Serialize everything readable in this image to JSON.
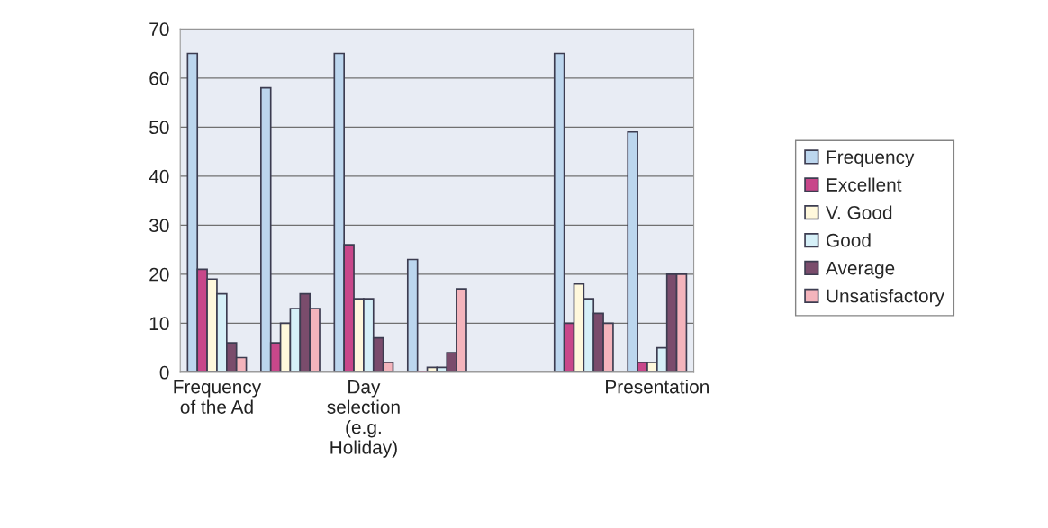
{
  "chart_data": {
    "type": "bar",
    "categories": [
      "Frequency\nof the Ad",
      null,
      "Day\nselection\n(e.g.\nHoliday)",
      null,
      null,
      null,
      "Presentation"
    ],
    "series": [
      {
        "name": "Frequency",
        "color": "#bcd6ee",
        "values": [
          65,
          58,
          65,
          23,
          null,
          65,
          49
        ]
      },
      {
        "name": "Excellent",
        "color": "#c8478a",
        "values": [
          21,
          6,
          26,
          0,
          null,
          10,
          2
        ]
      },
      {
        "name": "V. Good",
        "color": "#fff8dc",
        "values": [
          19,
          10,
          15,
          1,
          null,
          18,
          2
        ]
      },
      {
        "name": "Good",
        "color": "#d6f0f8",
        "values": [
          16,
          13,
          15,
          1,
          null,
          15,
          5
        ]
      },
      {
        "name": "Average",
        "color": "#7a4c6c",
        "values": [
          6,
          16,
          7,
          4,
          null,
          12,
          20
        ]
      },
      {
        "name": "Unsatisfactory",
        "color": "#f4b4bc",
        "values": [
          3,
          13,
          2,
          17,
          null,
          10,
          20
        ]
      }
    ],
    "ylim": [
      0,
      70
    ],
    "yticks": [
      0,
      10,
      20,
      30,
      40,
      50,
      60,
      70
    ],
    "grid": "y",
    "legend": "right"
  }
}
